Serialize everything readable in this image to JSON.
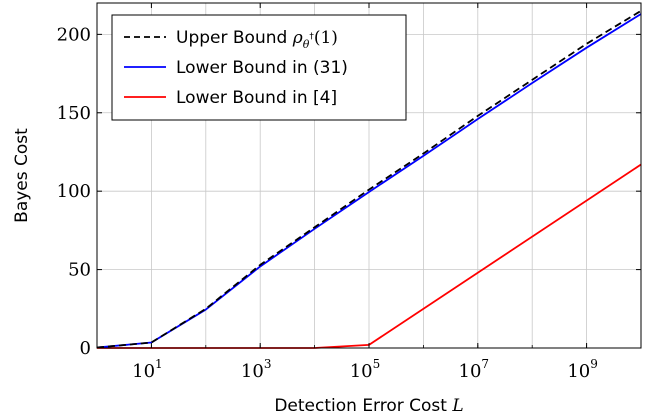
{
  "chart_data": {
    "type": "line",
    "xlabel": "Detection Error Cost",
    "xlabel_var": "L",
    "ylabel": "Bayes Cost",
    "x_scale": "log",
    "xlim": [
      1,
      10000000000
    ],
    "ylim": [
      0,
      220
    ],
    "x_ticks": [
      {
        "base": "10",
        "exp": "1",
        "value": 10
      },
      {
        "base": "10",
        "exp": "3",
        "value": 1000
      },
      {
        "base": "10",
        "exp": "5",
        "value": 100000
      },
      {
        "base": "10",
        "exp": "7",
        "value": 10000000
      },
      {
        "base": "10",
        "exp": "9",
        "value": 1000000000
      }
    ],
    "y_ticks": [
      "0",
      "50",
      "100",
      "150",
      "200"
    ],
    "grid": true,
    "legend_position": "top-left",
    "series": [
      {
        "name": "Upper Bound",
        "name_math": "ρ",
        "name_sub": "θ",
        "name_sup": "†",
        "name_arg": "(1)",
        "style": "dashed",
        "color": "#000000",
        "x": [
          1,
          10,
          100,
          1000,
          10000,
          100000,
          1000000,
          10000000,
          100000000,
          1000000000,
          10000000000
        ],
        "y": [
          0.3,
          3.5,
          25,
          53,
          77,
          101,
          124,
          148,
          171,
          194,
          215
        ]
      },
      {
        "name": "Lower Bound in (31)",
        "style": "solid",
        "color": "#0000ff",
        "x": [
          1,
          10,
          100,
          1000,
          10000,
          100000,
          1000000,
          10000000,
          100000000,
          1000000000,
          10000000000
        ],
        "y": [
          0.3,
          3.5,
          24.5,
          52,
          76,
          99.5,
          122.5,
          146,
          169,
          191.5,
          213
        ]
      },
      {
        "name": "Lower Bound in [4]",
        "style": "solid",
        "color": "#ff0000",
        "x": [
          1,
          10,
          100,
          1000,
          10000,
          100000,
          10000000000
        ],
        "y": [
          0,
          0,
          0,
          0,
          0,
          2,
          117
        ]
      }
    ]
  }
}
